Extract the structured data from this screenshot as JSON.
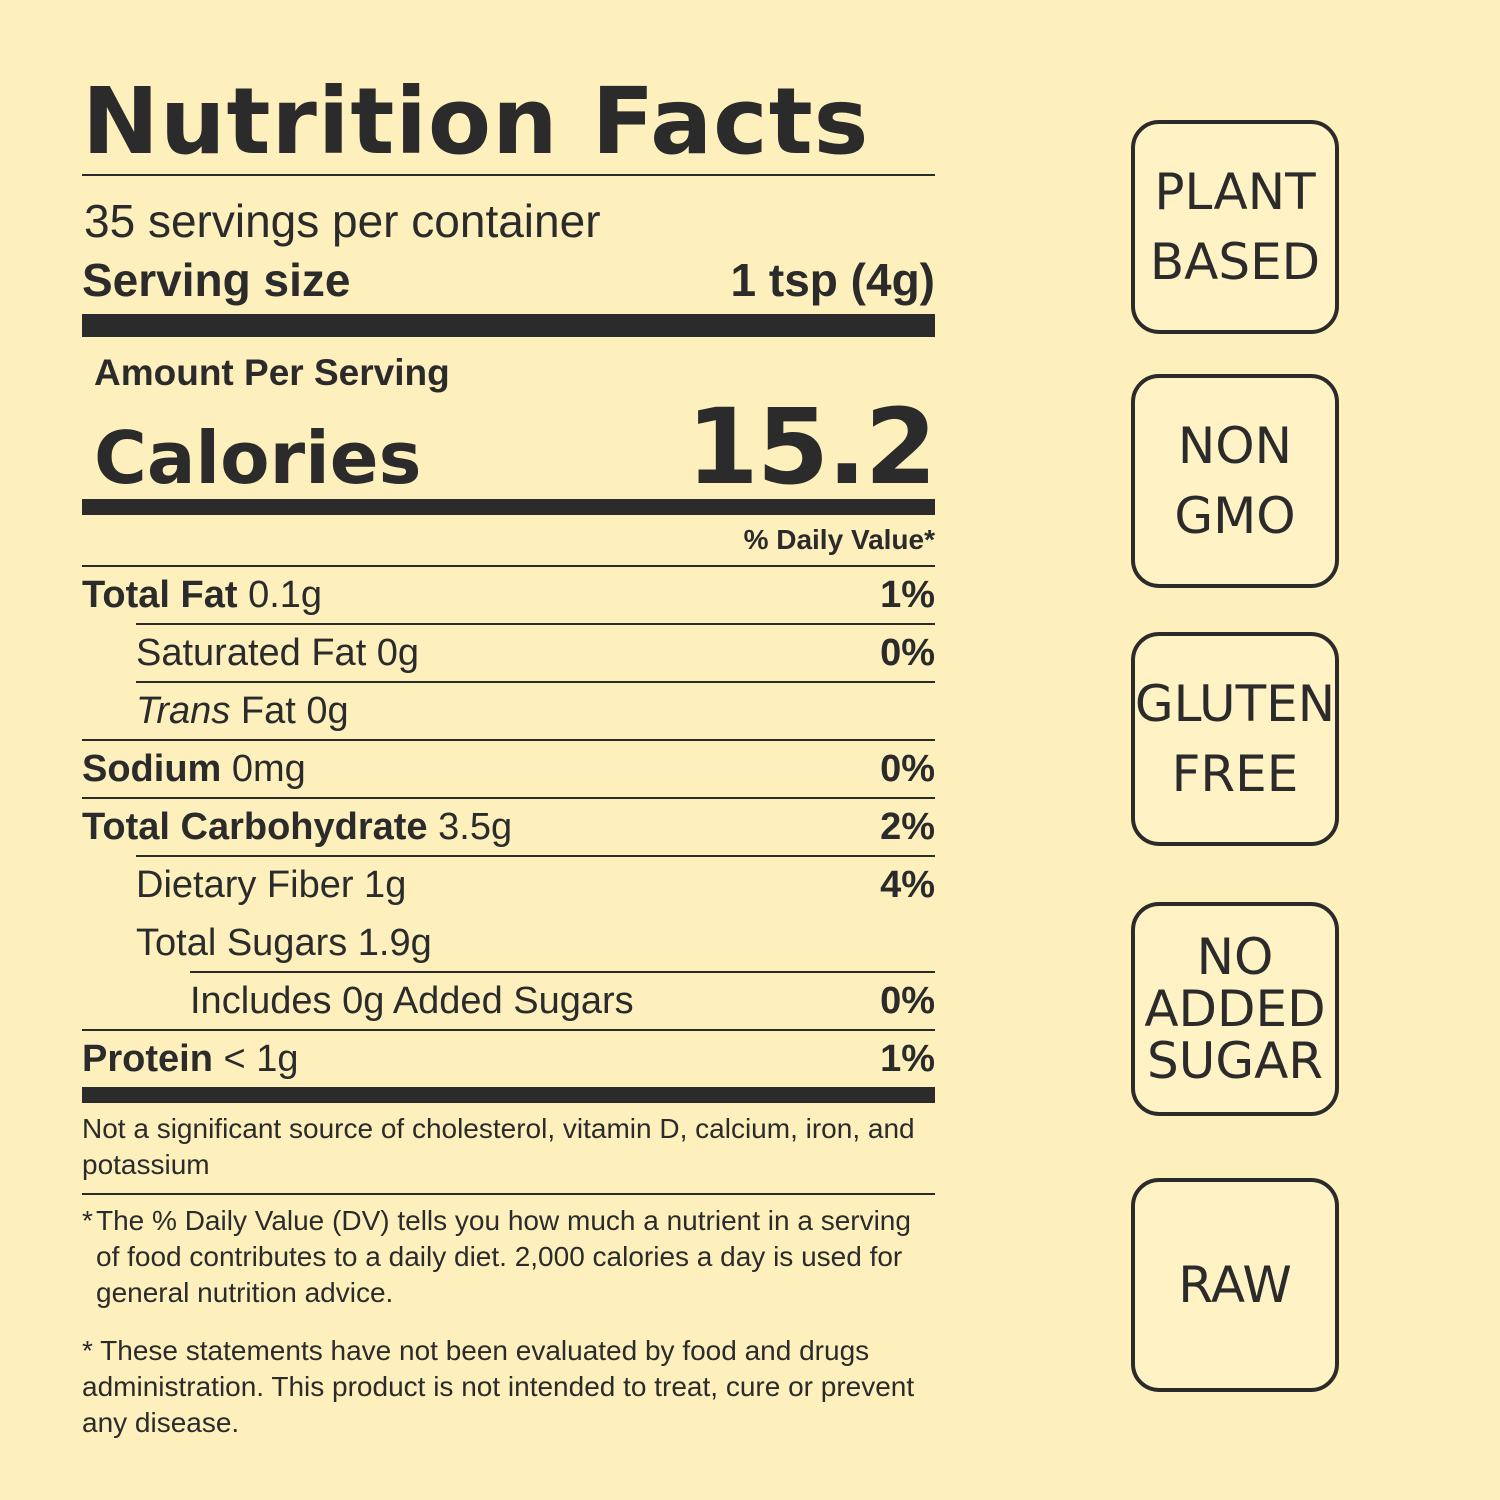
{
  "label": {
    "title": "Nutrition Facts",
    "servings_per_container": "35 servings per container",
    "serving_size_label": "Serving size",
    "serving_size_value": "1 tsp (4g)",
    "amount_per_serving": "Amount Per Serving",
    "calories_label": "Calories",
    "calories_value": "15.2",
    "daily_value_header": "% Daily Value*",
    "nutrients": [
      {
        "name": "Total Fat",
        "amount": "0.1g",
        "dv": "1%"
      },
      {
        "name": "Saturated Fat 0g",
        "amount": "",
        "dv": "0%"
      },
      {
        "name": "Trans",
        "amount": "Fat 0g",
        "dv": ""
      },
      {
        "name": "Sodium",
        "amount": "0mg",
        "dv": "0%"
      },
      {
        "name": "Total Carbohydrate",
        "amount": "3.5g",
        "dv": "2%"
      },
      {
        "name": "Dietary Fiber 1g",
        "amount": "",
        "dv": "4%"
      },
      {
        "name": "Total Sugars 1.9g",
        "amount": "",
        "dv": ""
      },
      {
        "name": "Includes 0g Added Sugars",
        "amount": "",
        "dv": "0%"
      },
      {
        "name": "Protein",
        "amount": "< 1g",
        "dv": "1%"
      }
    ],
    "not_significant": "Not a significant source of cholesterol, vitamin D, calcium, iron, and potassium",
    "dv_footnote_star": "*",
    "dv_footnote": "The % Daily Value (DV) tells you how much a nutrient in a serving of food contributes to a daily diet. 2,000 calories a day is used for general nutrition advice.",
    "disclaimer": "* These statements have not been evaluated by food and drugs administration. This product is not intended to treat, cure or prevent any disease."
  },
  "badges": [
    {
      "line1": "PLANT",
      "line2": "BASED"
    },
    {
      "line1": "NON",
      "line2": "GMO"
    },
    {
      "line1": "GLUTEN",
      "line2": "FREE"
    },
    {
      "line1": "NO",
      "line2": "ADDED",
      "line3": "SUGAR"
    },
    {
      "line1": "RAW"
    }
  ]
}
